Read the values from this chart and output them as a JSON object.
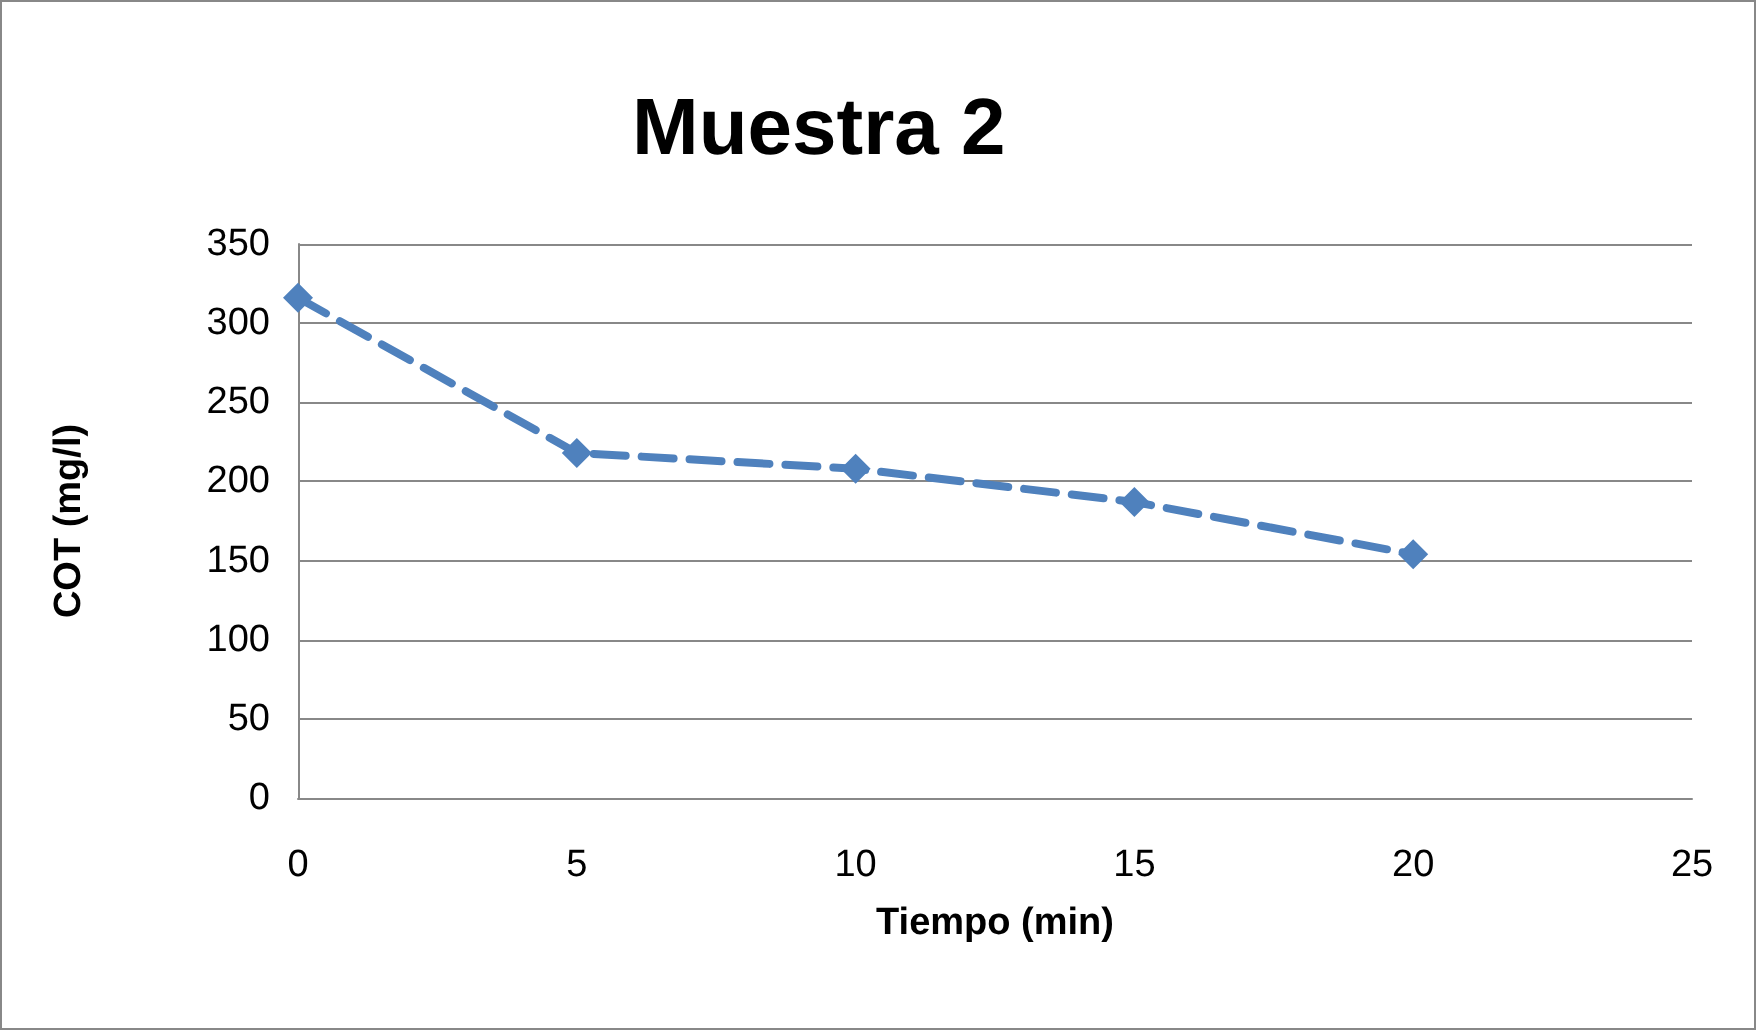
{
  "chart_data": {
    "type": "line",
    "title": "Muestra 2",
    "xlabel": "Tiempo (min)",
    "ylabel": "COT (mg/l)",
    "x": [
      0,
      5,
      10,
      15,
      20
    ],
    "series": [
      {
        "color": "#4f81bd",
        "values": [
          316,
          218,
          208,
          187,
          154
        ]
      }
    ],
    "xlim": [
      0,
      25
    ],
    "xticks": [
      0,
      5,
      10,
      15,
      20,
      25
    ],
    "ylim": [
      0,
      350
    ],
    "yticks": [
      0,
      50,
      100,
      150,
      200,
      250,
      300,
      350
    ],
    "grid": "y",
    "marker": "diamond",
    "line_style": "dashed"
  }
}
